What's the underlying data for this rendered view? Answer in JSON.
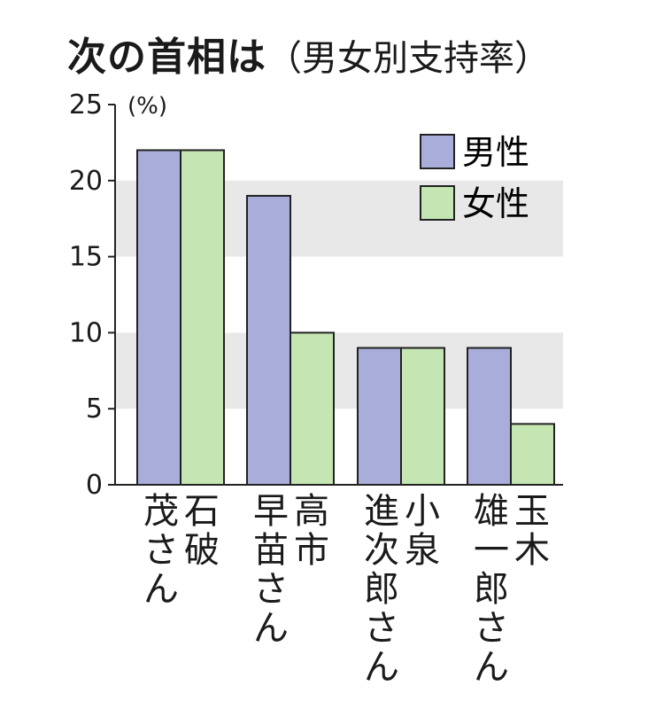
{
  "chart_data": {
    "type": "bar",
    "title": "次の首相は",
    "subtitle": "（男女別支持率）",
    "unit": "(%)",
    "ylim": [
      0,
      25
    ],
    "yticks": [
      "0",
      "5",
      "10",
      "15",
      "20",
      "25"
    ],
    "categories": [
      {
        "col1": "石破",
        "col2": "茂さん"
      },
      {
        "col1": "高市",
        "col2": "早苗さん"
      },
      {
        "col1": "小泉",
        "col2": "進次郎さん"
      },
      {
        "col1": "玉木",
        "col2": "雄一郎さん"
      }
    ],
    "series": [
      {
        "name": "男性",
        "color": "#a9add9",
        "values": [
          22,
          19,
          9,
          9
        ]
      },
      {
        "name": "女性",
        "color": "#c5e6b3",
        "values": [
          22,
          10,
          9,
          4
        ]
      }
    ],
    "bands": "alternating gray horizontal bands",
    "legend_position": "top-right"
  }
}
